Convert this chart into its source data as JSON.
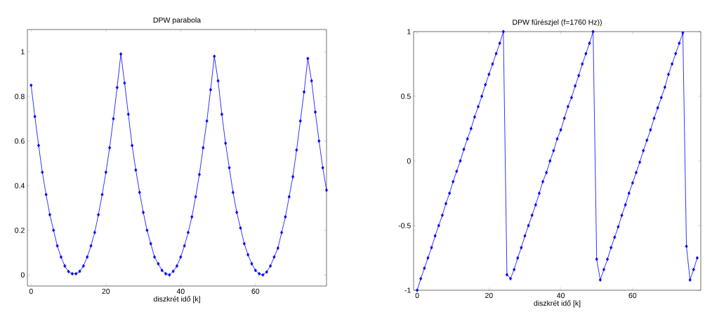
{
  "chart_data": [
    {
      "type": "line",
      "title": "DPW parabola",
      "xlabel": "diszkrét idő [k]",
      "color": "#0000ff",
      "marker": "diamond",
      "line_style": "solid",
      "xlim": [
        -1,
        79
      ],
      "ylim": [
        -0.05,
        1.1
      ],
      "xticks": [
        0,
        20,
        40,
        60
      ],
      "yticks": [
        0,
        0.2,
        0.4,
        0.6,
        0.8,
        1
      ],
      "x": [
        0,
        1,
        2,
        3,
        4,
        5,
        6,
        7,
        8,
        9,
        10,
        11,
        12,
        13,
        14,
        15,
        16,
        17,
        18,
        19,
        20,
        21,
        22,
        23,
        24,
        25,
        26,
        27,
        28,
        29,
        30,
        31,
        32,
        33,
        34,
        35,
        36,
        37,
        38,
        39,
        40,
        41,
        42,
        43,
        44,
        45,
        46,
        47,
        48,
        49,
        50,
        51,
        52,
        53,
        54,
        55,
        56,
        57,
        58,
        59,
        60,
        61,
        62,
        63,
        64,
        65,
        66,
        67,
        68,
        69,
        70,
        71,
        72,
        73,
        74,
        75,
        76,
        77,
        78,
        79
      ],
      "values": [
        0.85,
        0.71,
        0.58,
        0.46,
        0.36,
        0.27,
        0.2,
        0.13,
        0.08,
        0.04,
        0.015,
        0.005,
        0.005,
        0.016,
        0.04,
        0.08,
        0.13,
        0.19,
        0.27,
        0.36,
        0.46,
        0.57,
        0.7,
        0.84,
        0.99,
        0.86,
        0.72,
        0.58,
        0.47,
        0.37,
        0.28,
        0.2,
        0.14,
        0.08,
        0.05,
        0.02,
        0.005,
        0,
        0.016,
        0.04,
        0.08,
        0.13,
        0.19,
        0.26,
        0.35,
        0.45,
        0.57,
        0.69,
        0.83,
        0.98,
        0.87,
        0.72,
        0.59,
        0.48,
        0.37,
        0.28,
        0.21,
        0.14,
        0.09,
        0.05,
        0.02,
        0.005,
        0,
        0.013,
        0.04,
        0.08,
        0.12,
        0.19,
        0.26,
        0.35,
        0.44,
        0.56,
        0.69,
        0.82,
        0.97,
        0.87,
        0.73,
        0.6,
        0.48,
        0.38
      ]
    },
    {
      "type": "line",
      "title": "DPW fűrészjel (f=1760 Hz))",
      "xlabel": "diszkrét idő [k]",
      "color": "#0000ff",
      "marker": "diamond",
      "line_style": "solid",
      "xlim": [
        -1,
        79
      ],
      "ylim": [
        -1,
        1
      ],
      "xticks": [
        0,
        20,
        40,
        60
      ],
      "yticks": [
        -1,
        -0.5,
        0,
        0.5,
        1
      ],
      "x": [
        0,
        1,
        2,
        3,
        4,
        5,
        6,
        7,
        8,
        9,
        10,
        11,
        12,
        13,
        14,
        15,
        16,
        17,
        18,
        19,
        20,
        21,
        22,
        23,
        24,
        25,
        26,
        27,
        28,
        29,
        30,
        31,
        32,
        33,
        34,
        35,
        36,
        37,
        38,
        39,
        40,
        41,
        42,
        43,
        44,
        45,
        46,
        47,
        48,
        49,
        50,
        51,
        52,
        53,
        54,
        55,
        56,
        57,
        58,
        59,
        60,
        61,
        62,
        63,
        64,
        65,
        66,
        67,
        68,
        69,
        70,
        71,
        72,
        73,
        74,
        75,
        76,
        77,
        78
      ],
      "values": [
        -1,
        -0.91,
        -0.83,
        -0.75,
        -0.67,
        -0.58,
        -0.5,
        -0.42,
        -0.33,
        -0.25,
        -0.16,
        -0.08,
        0,
        0.09,
        0.17,
        0.25,
        0.34,
        0.42,
        0.5,
        0.59,
        0.67,
        0.75,
        0.83,
        0.91,
        1,
        -0.88,
        -0.91,
        -0.84,
        -0.75,
        -0.67,
        -0.58,
        -0.5,
        -0.42,
        -0.34,
        -0.25,
        -0.16,
        -0.09,
        0,
        0.08,
        0.17,
        0.24,
        0.33,
        0.42,
        0.49,
        0.58,
        0.66,
        0.75,
        0.83,
        0.91,
        1,
        -0.76,
        -0.92,
        -0.84,
        -0.76,
        -0.67,
        -0.59,
        -0.51,
        -0.42,
        -0.34,
        -0.25,
        -0.17,
        -0.09,
        -0.01,
        0.08,
        0.16,
        0.24,
        0.33,
        0.41,
        0.49,
        0.57,
        0.67,
        0.75,
        0.83,
        0.91,
        0.99,
        -0.66,
        -0.92,
        -0.84,
        -0.75
      ]
    }
  ]
}
